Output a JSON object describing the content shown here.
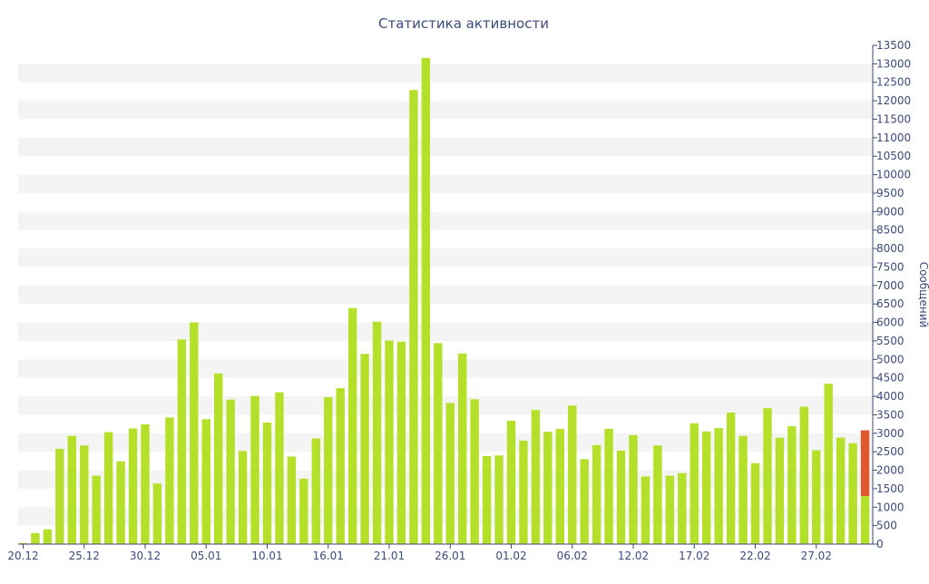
{
  "chart_data": {
    "type": "bar",
    "title": "Статистика активности",
    "xlabel": "",
    "ylabel": "Сообщений",
    "ylim": [
      0,
      13500
    ],
    "y_ticks": [
      0,
      500,
      1000,
      1500,
      2000,
      2500,
      3000,
      3500,
      4000,
      4500,
      5000,
      5500,
      6000,
      6500,
      7000,
      7500,
      8000,
      8500,
      9000,
      9500,
      10000,
      10500,
      11000,
      11500,
      12000,
      12500,
      13000,
      13500
    ],
    "x_tick_labels": [
      "20.12",
      "25.12",
      "30.12",
      "05.01",
      "10.01",
      "16.01",
      "21.01",
      "26.01",
      "01.02",
      "06.02",
      "12.02",
      "17.02",
      "22.02",
      "27.02"
    ],
    "x_tick_indices": [
      0,
      5,
      10,
      15,
      20,
      25,
      30,
      35,
      40,
      45,
      50,
      55,
      60,
      65
    ],
    "y_axis_side": "right",
    "grid": "horizontal-bands",
    "colors": {
      "bar": "#b5e02a",
      "bar_highlight": "#e0582e",
      "band": "#f4f4f4",
      "axis": "#3c4a7d",
      "text": "#3c4a7d"
    },
    "values": [
      30,
      300,
      400,
      2580,
      2930,
      2670,
      1850,
      3030,
      2240,
      3130,
      3240,
      1640,
      3430,
      5540,
      6000,
      3380,
      4620,
      3910,
      2520,
      4010,
      3290,
      4110,
      2370,
      1770,
      2860,
      3980,
      4220,
      6390,
      5150,
      6020,
      5510,
      5480,
      12290,
      13160,
      5440,
      3820,
      5160,
      3920,
      2380,
      2400,
      3340,
      2800,
      3630,
      3040,
      3120,
      3750,
      2300,
      2680,
      3120,
      2530,
      2950,
      1830,
      2670,
      1850,
      1920,
      3270,
      3050,
      3140,
      3560,
      2930,
      2190,
      3680,
      2880,
      3190,
      3720,
      2540,
      4340,
      2880,
      2730,
      1300
    ],
    "last_bar_highlight": 1780
  }
}
